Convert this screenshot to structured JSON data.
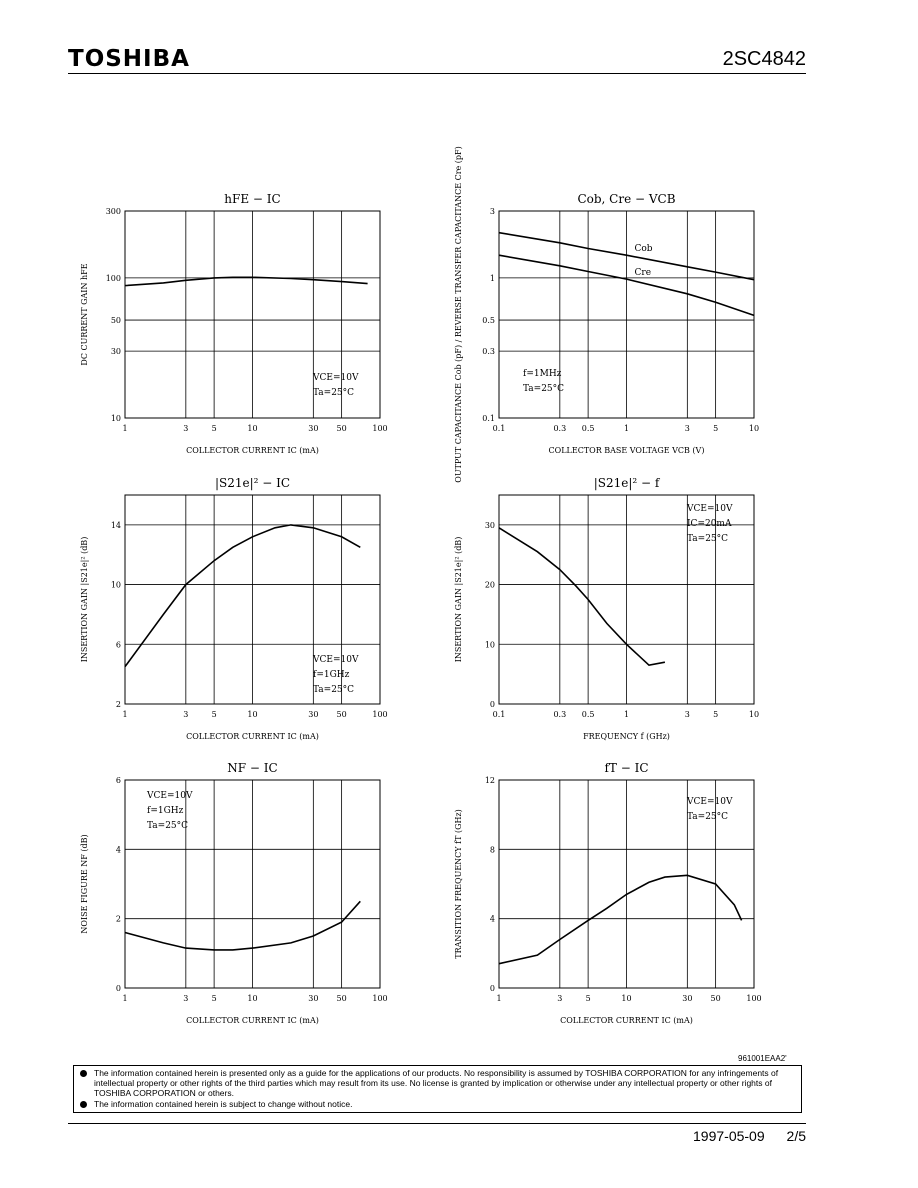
{
  "header": {
    "brand": "TOSHIBA",
    "part_number": "2SC4842"
  },
  "chart_data": [
    {
      "type": "line",
      "title": "hFE − IC",
      "xlabel": "COLLECTOR CURRENT   IC   (mA)",
      "ylabel": "DC CURRENT GAIN   hFE",
      "x_scale": "log",
      "y_scale": "log",
      "xlim": [
        1,
        100
      ],
      "ylim": [
        10,
        300
      ],
      "xticks": [
        "1",
        "3",
        "5",
        "10",
        "30",
        "50",
        "100"
      ],
      "yticks": [
        "10",
        "30",
        "50",
        "100",
        "300"
      ],
      "conditions": [
        "VCE=10V",
        "Ta=25°C"
      ],
      "series": [
        {
          "x": [
            1,
            2,
            3,
            5,
            7,
            10,
            20,
            30,
            50,
            80
          ],
          "y": [
            88,
            92,
            96,
            100,
            101,
            101,
            99,
            97,
            94,
            91
          ]
        }
      ]
    },
    {
      "type": "line",
      "title": "Cob, Cre − VCB",
      "xlabel": "COLLECTOR BASE VOLTAGE   VCB   (V)",
      "ylabel": "OUTPUT CAPACITANCE  Cob (pF) / REVERSE TRANSFER CAPACITANCE  Cre (pF)",
      "x_scale": "log",
      "y_scale": "log",
      "xlim": [
        0.1,
        10
      ],
      "ylim": [
        0.1,
        3
      ],
      "xticks": [
        "0.1",
        "0.3",
        "0.5",
        "1",
        "3",
        "5",
        "10"
      ],
      "yticks": [
        "0.1",
        "0.3",
        "0.5",
        "1",
        "3"
      ],
      "conditions": [
        "f=1MHz",
        "Ta=25°C"
      ],
      "series": [
        {
          "name": "Cob",
          "x": [
            0.1,
            0.3,
            0.5,
            1,
            3,
            5,
            10
          ],
          "y": [
            2.1,
            1.78,
            1.62,
            1.45,
            1.2,
            1.1,
            0.97
          ]
        },
        {
          "name": "Cre",
          "x": [
            0.1,
            0.3,
            0.5,
            1,
            3,
            5,
            10
          ],
          "y": [
            1.45,
            1.22,
            1.11,
            0.98,
            0.77,
            0.67,
            0.54
          ]
        }
      ]
    },
    {
      "type": "line",
      "title": "|S21e|² − IC",
      "xlabel": "COLLECTOR CURRENT   IC   (mA)",
      "ylabel": "INSERTION GAIN   |S21e|²   (dB)",
      "x_scale": "log",
      "y_scale": "linear",
      "xlim": [
        1,
        100
      ],
      "ylim": [
        2,
        16
      ],
      "xticks": [
        "1",
        "3",
        "5",
        "10",
        "30",
        "50",
        "100"
      ],
      "yticks": [
        "2",
        "6",
        "10",
        "14"
      ],
      "conditions": [
        "VCE=10V",
        "f=1GHz",
        "Ta=25°C"
      ],
      "series": [
        {
          "x": [
            1,
            2,
            3,
            5,
            7,
            10,
            15,
            20,
            30,
            50,
            70
          ],
          "y": [
            4.5,
            8.0,
            10.0,
            11.6,
            12.5,
            13.2,
            13.8,
            14.0,
            13.8,
            13.2,
            12.5
          ]
        }
      ]
    },
    {
      "type": "line",
      "title": "|S21e|² − f",
      "xlabel": "FREQUENCY   f   (GHz)",
      "ylabel": "INSERTION GAIN   |S21e|²   (dB)",
      "x_scale": "log",
      "y_scale": "linear",
      "xlim": [
        0.1,
        10
      ],
      "ylim": [
        0,
        35
      ],
      "xticks": [
        "0.1",
        "0.3",
        "0.5",
        "1",
        "3",
        "5",
        "10"
      ],
      "yticks": [
        "0",
        "10",
        "20",
        "30"
      ],
      "conditions": [
        "VCE=10V",
        "IC=20mA",
        "Ta=25°C"
      ],
      "series": [
        {
          "x": [
            0.1,
            0.2,
            0.3,
            0.4,
            0.5,
            0.7,
            1,
            1.5,
            2
          ],
          "y": [
            29.5,
            25.5,
            22.5,
            19.8,
            17.5,
            13.5,
            10,
            6.5,
            7
          ]
        }
      ]
    },
    {
      "type": "line",
      "title": "NF − IC",
      "xlabel": "COLLECTOR CURRENT   IC   (mA)",
      "ylabel": "NOISE FIGURE   NF   (dB)",
      "x_scale": "log",
      "y_scale": "linear",
      "xlim": [
        1,
        100
      ],
      "ylim": [
        0,
        6
      ],
      "xticks": [
        "1",
        "3",
        "5",
        "10",
        "30",
        "50",
        "100"
      ],
      "yticks": [
        "0",
        "2",
        "4",
        "6"
      ],
      "conditions": [
        "VCE=10V",
        "f=1GHz",
        "Ta=25°C"
      ],
      "series": [
        {
          "x": [
            1,
            2,
            3,
            5,
            7,
            10,
            20,
            30,
            50,
            70
          ],
          "y": [
            1.6,
            1.3,
            1.15,
            1.1,
            1.1,
            1.15,
            1.3,
            1.5,
            1.9,
            2.5
          ]
        }
      ]
    },
    {
      "type": "line",
      "title": "fT − IC",
      "xlabel": "COLLECTOR CURRENT   IC   (mA)",
      "ylabel": "TRANSITION FREQUENCY   fT   (GHz)",
      "x_scale": "log",
      "y_scale": "linear",
      "xlim": [
        1,
        100
      ],
      "ylim": [
        0,
        12
      ],
      "xticks": [
        "1",
        "3",
        "5",
        "10",
        "30",
        "50",
        "100"
      ],
      "yticks": [
        "0",
        "4",
        "8",
        "12"
      ],
      "conditions": [
        "VCE=10V",
        "Ta=25°C"
      ],
      "series": [
        {
          "x": [
            1,
            2,
            3,
            5,
            7,
            10,
            15,
            20,
            30,
            50,
            70,
            80
          ],
          "y": [
            1.4,
            1.9,
            2.8,
            3.9,
            4.6,
            5.4,
            6.1,
            6.4,
            6.5,
            6.0,
            4.8,
            3.9
          ]
        }
      ]
    }
  ],
  "stamp": "961001EAA2'",
  "disclaimer": [
    "The information contained herein is presented only as a guide for the applications of our products. No responsibility is assumed by TOSHIBA CORPORATION for any infringements of intellectual property or other rights of the third parties which may result from its use. No license is granted by implication or otherwise under any intellectual property or other rights of TOSHIBA CORPORATION or others.",
    "The information contained herein is subject to change without notice."
  ],
  "footer": {
    "date": "1997-05-09",
    "page": "2/5"
  }
}
